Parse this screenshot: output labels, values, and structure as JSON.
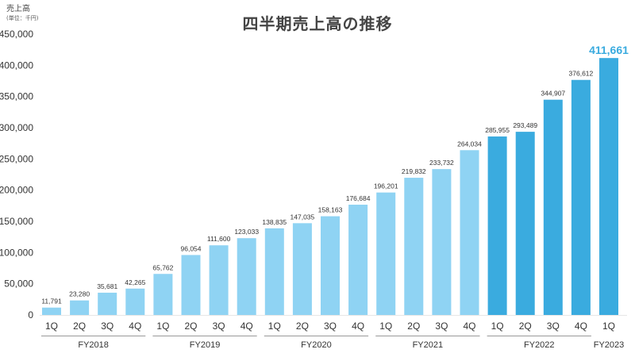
{
  "chart_data": {
    "type": "bar",
    "title": "四半期売上高の推移",
    "ylabel": "売上高",
    "yunit": "(単位：千円)",
    "ylim": [
      0,
      450000
    ],
    "yticks": [
      "0",
      "50,000",
      "100,000",
      "150,000",
      "200,000",
      "250,000",
      "300,000",
      "350,000",
      "400,000",
      "450,000"
    ],
    "grid": false,
    "categories": [
      "1Q",
      "2Q",
      "3Q",
      "4Q",
      "1Q",
      "2Q",
      "3Q",
      "4Q",
      "1Q",
      "2Q",
      "3Q",
      "4Q",
      "1Q",
      "2Q",
      "3Q",
      "4Q",
      "1Q",
      "2Q",
      "3Q",
      "4Q",
      "1Q"
    ],
    "values": [
      11791,
      23280,
      35681,
      42265,
      65762,
      96054,
      111600,
      123033,
      138835,
      147035,
      158163,
      176684,
      196201,
      219832,
      233732,
      264034,
      285955,
      293489,
      344907,
      376612,
      411661
    ],
    "value_labels": [
      "11,791",
      "23,280",
      "35,681",
      "42,265",
      "65,762",
      "96,054",
      "111,600",
      "123,033",
      "138,835",
      "147,035",
      "158,163",
      "176,684",
      "196,201",
      "219,832",
      "233,732",
      "264,034",
      "285,955",
      "293,489",
      "344,907",
      "376,612",
      "411,661"
    ],
    "fiscal_years": [
      {
        "label": "FY2018",
        "count": 4
      },
      {
        "label": "FY2019",
        "count": 4
      },
      {
        "label": "FY2020",
        "count": 4
      },
      {
        "label": "FY2021",
        "count": 4
      },
      {
        "label": "FY2022",
        "count": 4
      },
      {
        "label": "FY2023",
        "count": 1
      }
    ],
    "colors": {
      "light_bar": "#8fd3f3",
      "dark_bar": "#3aabdf",
      "latest_label": "#3aabdf",
      "axis": "#999999",
      "text": "#333333"
    },
    "highlight_from_index": 16
  }
}
